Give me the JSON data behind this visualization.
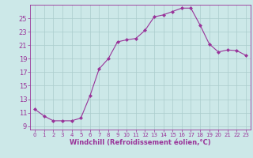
{
  "x": [
    0,
    1,
    2,
    3,
    4,
    5,
    6,
    7,
    8,
    9,
    10,
    11,
    12,
    13,
    14,
    15,
    16,
    17,
    18,
    19,
    20,
    21,
    22,
    23
  ],
  "y": [
    11.5,
    10.5,
    9.8,
    9.8,
    9.8,
    10.2,
    13.5,
    17.5,
    19.0,
    21.5,
    21.8,
    22.0,
    23.2,
    25.2,
    25.5,
    26.0,
    26.5,
    26.5,
    24.0,
    21.2,
    20.0,
    20.3,
    20.2,
    19.5
  ],
  "xlabel": "Windchill (Refroidissement éolien,°C)",
  "ylim": [
    8.5,
    27.0
  ],
  "xlim": [
    -0.5,
    23.5
  ],
  "yticks": [
    9,
    11,
    13,
    15,
    17,
    19,
    21,
    23,
    25
  ],
  "xticks": [
    0,
    1,
    2,
    3,
    4,
    5,
    6,
    7,
    8,
    9,
    10,
    11,
    12,
    13,
    14,
    15,
    16,
    17,
    18,
    19,
    20,
    21,
    22,
    23
  ],
  "line_color": "#993399",
  "marker": "D",
  "marker_size": 2.0,
  "bg_color": "#cce8e8",
  "grid_color": "#aacccc",
  "xlabel_fontsize": 6.0,
  "ytick_fontsize": 6.0,
  "xtick_fontsize": 5.0,
  "tick_color": "#993399",
  "label_color": "#993399",
  "spine_color": "#993399",
  "linewidth": 0.8
}
